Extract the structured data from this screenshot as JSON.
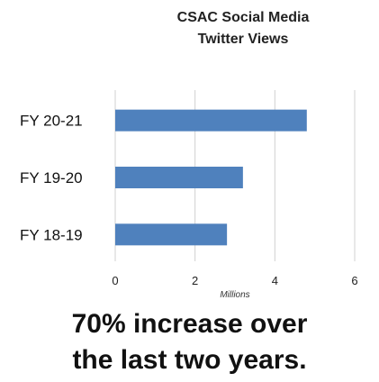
{
  "chart_data": {
    "type": "bar",
    "orientation": "horizontal",
    "title": [
      "CSAC Social Media",
      "Twitter Views"
    ],
    "categories": [
      "FY 20-21",
      "FY 19-20",
      "FY 18-19"
    ],
    "values": [
      4.8,
      3.2,
      2.8
    ],
    "xlabel": "Millions",
    "xlim": [
      0,
      6
    ],
    "xticks": [
      0,
      2,
      4,
      6
    ],
    "grid": "vertical",
    "bar_color": "#4f81bd"
  },
  "caption": [
    "70% increase over",
    "the last two years."
  ]
}
